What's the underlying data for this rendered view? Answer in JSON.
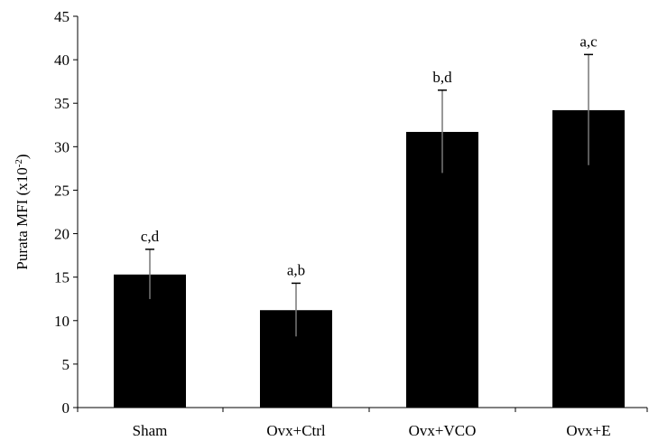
{
  "chart_data": {
    "type": "bar",
    "title": "",
    "xlabel": "",
    "ylabel": "Purata MFI (x10",
    "ylabel_superscript": "-2",
    "ylabel_suffix": ")",
    "ylim": [
      0,
      45
    ],
    "yticks": [
      0,
      5,
      10,
      15,
      20,
      25,
      30,
      35,
      40,
      45
    ],
    "categories": [
      "Sham",
      "Ovx+Ctrl",
      "Ovx+VCO",
      "Ovx+E"
    ],
    "values": [
      15.3,
      11.2,
      31.7,
      34.2
    ],
    "errors": [
      2.9,
      3.1,
      4.8,
      6.4
    ],
    "significance_labels": [
      "c,d",
      "a,b",
      "b,d",
      "a,c"
    ],
    "bar_color": "#000000",
    "grid": false,
    "legend": "none"
  }
}
